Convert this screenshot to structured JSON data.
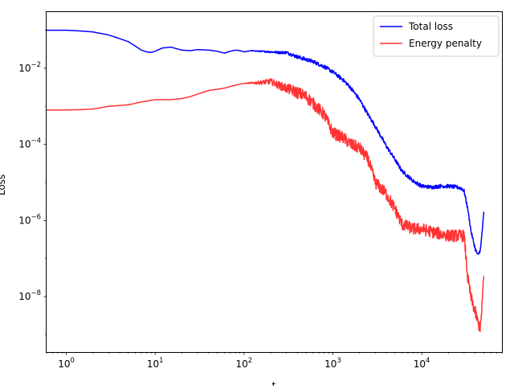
{
  "chart_data": {
    "type": "line",
    "title": "",
    "xlabel": "t",
    "ylabel": "Loss",
    "xscale": "log",
    "yscale": "log",
    "xlim": [
      0.6,
      80000
    ],
    "ylim": [
      3.5e-10,
      0.3
    ],
    "grid": false,
    "legend_position": "top-right",
    "x_ticks": [
      {
        "value": 1,
        "base": "10",
        "exp": "0"
      },
      {
        "value": 10,
        "base": "10",
        "exp": "1"
      },
      {
        "value": 100,
        "base": "10",
        "exp": "2"
      },
      {
        "value": 1000,
        "base": "10",
        "exp": "3"
      },
      {
        "value": 10000,
        "base": "10",
        "exp": "4"
      }
    ],
    "y_ticks": [
      {
        "value": 0.01,
        "base": "10",
        "exp": "−2"
      },
      {
        "value": 0.0001,
        "base": "10",
        "exp": "−4"
      },
      {
        "value": 1e-06,
        "base": "10",
        "exp": "−6"
      },
      {
        "value": 1e-08,
        "base": "10",
        "exp": "−8"
      }
    ],
    "series": [
      {
        "name": "Total loss",
        "color": "#0000ff",
        "x": [
          0.6,
          1,
          1.5,
          2,
          3,
          4,
          5,
          6,
          7,
          8,
          9,
          10,
          12,
          15,
          20,
          25,
          30,
          40,
          50,
          60,
          70,
          80,
          90,
          100,
          120,
          150,
          200,
          250,
          300,
          400,
          500,
          600,
          800,
          1000,
          1300,
          1600,
          2000,
          2500,
          3000,
          4000,
          5000,
          6000,
          8000,
          10000,
          13000,
          16000,
          20000,
          25000,
          28000,
          30000,
          33000,
          36000,
          40000,
          43000,
          46000,
          50000
        ],
        "y": [
          0.1,
          0.1,
          0.095,
          0.09,
          0.075,
          0.06,
          0.05,
          0.038,
          0.03,
          0.027,
          0.026,
          0.028,
          0.034,
          0.036,
          0.03,
          0.029,
          0.031,
          0.03,
          0.028,
          0.025,
          0.028,
          0.03,
          0.029,
          0.027,
          0.029,
          0.028,
          0.027,
          0.026,
          0.026,
          0.02,
          0.017,
          0.015,
          0.011,
          0.008,
          0.005,
          0.003,
          0.0015,
          0.0006,
          0.0003,
          9e-05,
          4e-05,
          2e-05,
          1.1e-05,
          8e-06,
          7.5e-06,
          8e-06,
          8e-06,
          7.5e-06,
          7e-06,
          6e-06,
          2e-06,
          5e-07,
          1.8e-07,
          1.2e-07,
          1.8e-07,
          1.6e-06
        ]
      },
      {
        "name": "Energy penalty",
        "color": "#ff3333",
        "x": [
          0.6,
          1,
          1.5,
          2,
          3,
          5,
          7,
          10,
          15,
          20,
          25,
          30,
          40,
          60,
          80,
          100,
          150,
          200,
          250,
          300,
          400,
          500,
          600,
          800,
          1000,
          1300,
          1600,
          2000,
          2500,
          3000,
          4000,
          5000,
          6000,
          8000,
          10000,
          13000,
          16000,
          20000,
          25000,
          28000,
          30000,
          33000,
          36000,
          40000,
          43000,
          46000,
          50000
        ],
        "y": [
          0.0008,
          0.0008,
          0.00082,
          0.00085,
          0.001,
          0.0011,
          0.0013,
          0.0015,
          0.0015,
          0.0016,
          0.0018,
          0.0021,
          0.0026,
          0.003,
          0.0036,
          0.004,
          0.0042,
          0.0045,
          0.0035,
          0.003,
          0.0023,
          0.0018,
          0.0012,
          0.0006,
          0.0002,
          0.00015,
          0.0001,
          8e-05,
          4e-05,
          1e-05,
          5e-06,
          2e-06,
          8e-07,
          6e-07,
          6e-07,
          5e-07,
          4.5e-07,
          4e-07,
          4e-07,
          4e-07,
          4e-07,
          3e-08,
          9e-09,
          4e-09,
          2e-09,
          1.5e-09,
          3.5e-08
        ]
      }
    ]
  }
}
